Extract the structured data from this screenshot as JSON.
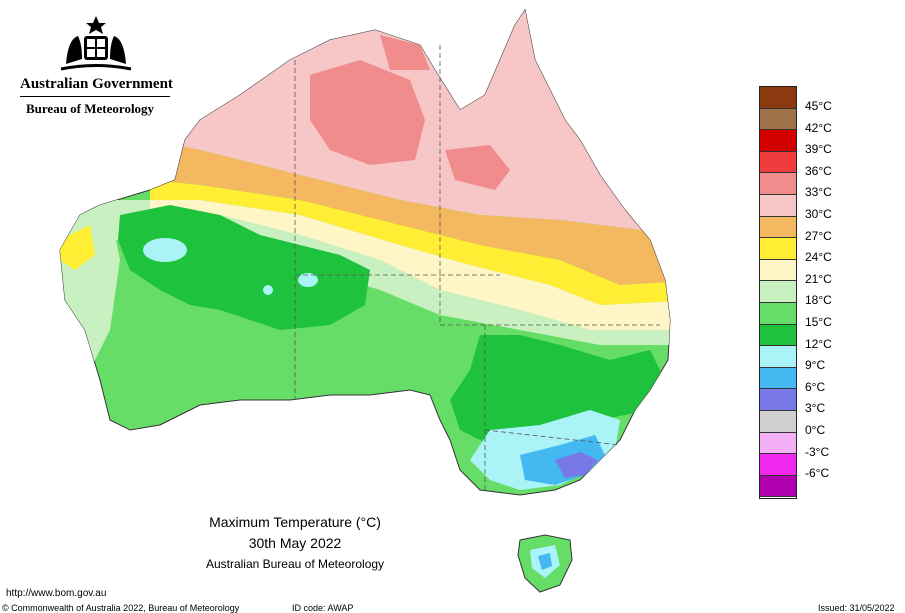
{
  "header": {
    "government": "Australian Government",
    "bureau": "Bureau of Meteorology"
  },
  "title": {
    "line1": "Maximum Temperature (°C)",
    "line2": "30th May 2022",
    "line3": "Australian Bureau of Meteorology"
  },
  "footer": {
    "url": "http://www.bom.gov.au",
    "copyright": "© Commonwealth of Australia 2022, Bureau of Meteorology",
    "id_code": "ID code: AWAP",
    "issued": "Issued: 31/05/2022"
  },
  "legend": [
    {
      "label": "45°C",
      "color": "#8b3a0f"
    },
    {
      "label": "42°C",
      "color": "#a0724a"
    },
    {
      "label": "39°C",
      "color": "#d40000"
    },
    {
      "label": "36°C",
      "color": "#f03c3c"
    },
    {
      "label": "33°C",
      "color": "#f08c8c"
    },
    {
      "label": "30°C",
      "color": "#f7c6c6"
    },
    {
      "label": "27°C",
      "color": "#f4b860"
    },
    {
      "label": "24°C",
      "color": "#ffee33"
    },
    {
      "label": "21°C",
      "color": "#fff6c8"
    },
    {
      "label": "18°C",
      "color": "#c8f0c0"
    },
    {
      "label": "15°C",
      "color": "#66dd66"
    },
    {
      "label": "12°C",
      "color": "#1ec23c"
    },
    {
      "label": "9°C",
      "color": "#aaf4f8"
    },
    {
      "label": "6°C",
      "color": "#44b8f0"
    },
    {
      "label": "3°C",
      "color": "#7878e8"
    },
    {
      "label": "0°C",
      "color": "#d0d0d0"
    },
    {
      "label": "-3°C",
      "color": "#f4b0f4"
    },
    {
      "label": "-6°C",
      "color": "#f028f0"
    },
    {
      "label": "",
      "color": "#b000b0"
    }
  ]
}
